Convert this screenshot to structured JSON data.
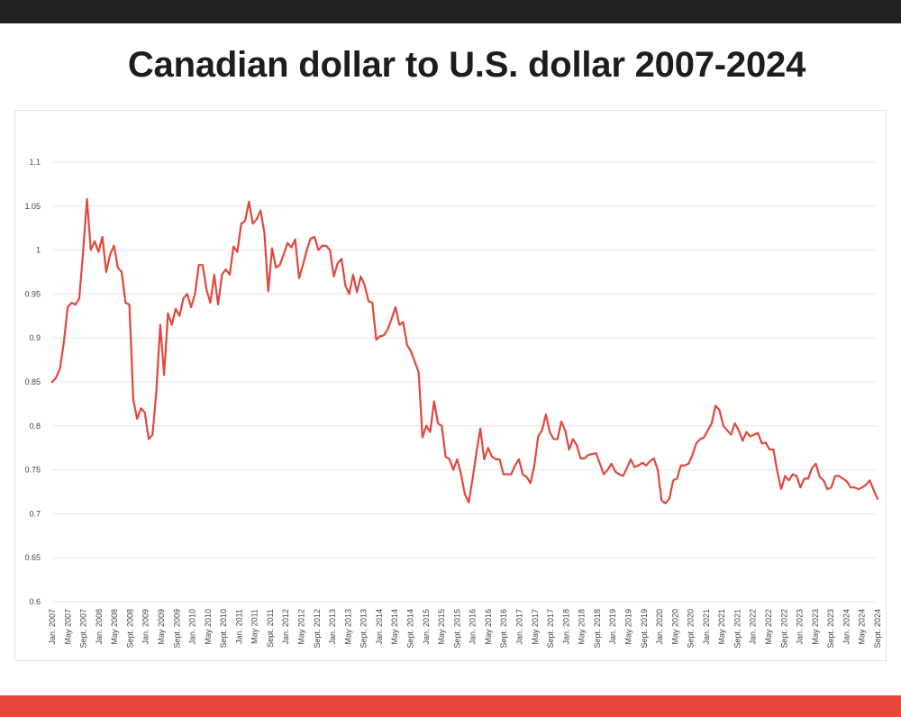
{
  "chart_data": {
    "type": "line",
    "title": "Canadian dollar to U.S. dollar 2007-2024",
    "xlabel": "",
    "ylabel": "",
    "ylim": [
      0.6,
      1.1
    ],
    "yticks": [
      "0.6",
      "0.65",
      "0.7",
      "0.75",
      "0.8",
      "0.85",
      "0.9",
      "0.95",
      "1",
      "1.05",
      "1.1"
    ],
    "grid": true,
    "line_color": "#e0483e",
    "xtick_labels": [
      "Jan. 2007",
      "May 2007",
      "Sept. 2007",
      "Jan. 2008",
      "May 2008",
      "Sept. 2008",
      "Jan. 2009",
      "May 2009",
      "Sept. 2009",
      "Jan. 2010",
      "May 2010",
      "Sept. 2010",
      "Jan. 2011",
      "May 2011",
      "Sept. 2011",
      "Jan. 2012",
      "May 2012",
      "Sept. 2012",
      "Jan. 2013",
      "May 2013",
      "Sept. 2013",
      "Jan. 2014",
      "May 2014",
      "Sept. 2014",
      "Jan. 2015",
      "May 2015",
      "Sept. 2015",
      "Jan. 2016",
      "May 2016",
      "Sept. 2016",
      "Jan. 2017",
      "May 2017",
      "Sept. 2017",
      "Jan. 2018",
      "May 2018",
      "Sept. 2018",
      "Jan. 2019",
      "May 2019",
      "Sept. 2019",
      "Jan. 2020",
      "May 2020",
      "Sept. 2020",
      "Jan. 2021",
      "May 2021",
      "Sept. 2021",
      "Jan. 2022",
      "May 2022",
      "Sept. 2022",
      "Jan. 2023",
      "May 2023",
      "Sept. 2023",
      "Jan. 2024",
      "May 2024",
      "Sept. 2024"
    ],
    "series": [
      {
        "values": [
          0.85,
          0.855,
          0.865,
          0.895,
          0.935,
          0.94,
          0.938,
          0.945,
          0.998,
          1.058,
          1.0,
          1.01,
          0.998,
          1.015,
          0.975,
          0.995,
          1.005,
          0.98,
          0.975,
          0.94,
          0.938,
          0.83,
          0.808,
          0.82,
          0.815,
          0.785,
          0.79,
          0.84,
          0.915,
          0.858,
          0.928,
          0.915,
          0.933,
          0.925,
          0.945,
          0.95,
          0.935,
          0.95,
          0.983,
          0.983,
          0.955,
          0.94,
          0.972,
          0.938,
          0.972,
          0.978,
          0.972,
          1.004,
          0.998,
          1.03,
          1.033,
          1.055,
          1.03,
          1.035,
          1.045,
          1.02,
          0.953,
          1.002,
          0.98,
          0.983,
          0.995,
          1.008,
          1.003,
          1.012,
          0.968,
          0.983,
          1.0,
          1.013,
          1.015,
          1.0,
          1.005,
          1.005,
          1.0,
          0.97,
          0.985,
          0.99,
          0.96,
          0.95,
          0.972,
          0.952,
          0.97,
          0.96,
          0.942,
          0.94,
          0.898,
          0.902,
          0.903,
          0.91,
          0.922,
          0.935,
          0.915,
          0.918,
          0.892,
          0.885,
          0.873,
          0.861,
          0.787,
          0.8,
          0.793,
          0.828,
          0.803,
          0.8,
          0.765,
          0.762,
          0.75,
          0.762,
          0.745,
          0.722,
          0.713,
          0.74,
          0.77,
          0.797,
          0.762,
          0.775,
          0.765,
          0.762,
          0.762,
          0.745,
          0.745,
          0.745,
          0.755,
          0.762,
          0.745,
          0.742,
          0.735,
          0.755,
          0.788,
          0.795,
          0.813,
          0.793,
          0.785,
          0.785,
          0.805,
          0.795,
          0.773,
          0.785,
          0.778,
          0.763,
          0.763,
          0.767,
          0.768,
          0.769,
          0.757,
          0.745,
          0.75,
          0.757,
          0.748,
          0.745,
          0.743,
          0.752,
          0.762,
          0.753,
          0.755,
          0.758,
          0.755,
          0.76,
          0.763,
          0.75,
          0.715,
          0.712,
          0.717,
          0.738,
          0.74,
          0.755,
          0.755,
          0.757,
          0.767,
          0.78,
          0.785,
          0.787,
          0.795,
          0.803,
          0.823,
          0.818,
          0.8,
          0.795,
          0.79,
          0.803,
          0.795,
          0.783,
          0.793,
          0.788,
          0.79,
          0.792,
          0.78,
          0.781,
          0.773,
          0.773,
          0.748,
          0.728,
          0.743,
          0.738,
          0.745,
          0.743,
          0.73,
          0.74,
          0.74,
          0.752,
          0.757,
          0.742,
          0.738,
          0.728,
          0.73,
          0.743,
          0.743,
          0.74,
          0.737,
          0.73,
          0.73,
          0.728,
          0.73,
          0.733,
          0.738,
          0.727,
          0.717
        ]
      }
    ]
  }
}
